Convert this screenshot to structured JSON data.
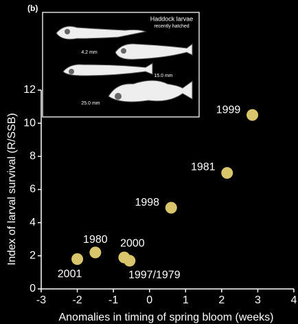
{
  "chart_data": {
    "type": "scatter",
    "panel_label": "(b)",
    "inset": {
      "title": "Haddock larvae",
      "subtitle": "recently hatched",
      "sizes": [
        "4.2 mm",
        "15.0 mm",
        "25.0 mm"
      ]
    },
    "xlabel": "Anomalies in timing of spring bloom (weeks)",
    "ylabel": "Index of larval survival (R/SSB)",
    "x": [
      -2.0,
      -1.5,
      -0.7,
      -0.55,
      0.6,
      2.15,
      2.85
    ],
    "values": [
      1.8,
      2.2,
      1.9,
      1.7,
      4.9,
      7.0,
      10.5
    ],
    "labels": [
      "2001",
      "1980",
      "2000",
      "1997/1979",
      "1998",
      "1981",
      "1999"
    ],
    "color": "#d9c66c",
    "xlim": [
      -3,
      4
    ],
    "xticks": [
      -3,
      -2,
      -1,
      0,
      1,
      2,
      3,
      4
    ],
    "ylim": [
      0,
      12
    ],
    "yticks": [
      0,
      2,
      4,
      6,
      8,
      10,
      12
    ]
  }
}
